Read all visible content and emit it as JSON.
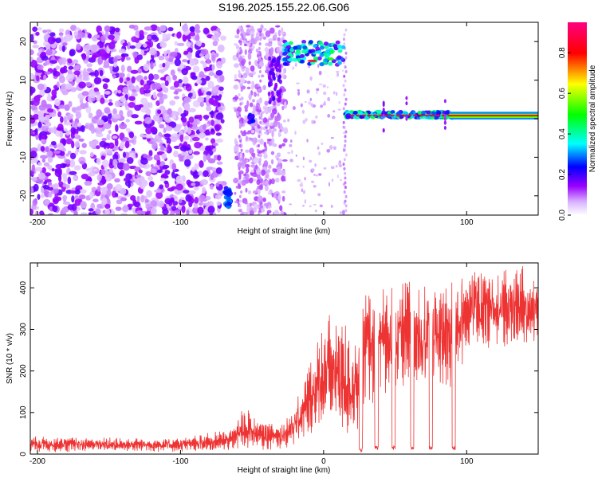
{
  "title": "S196.2025.155.22.06.G06",
  "chart_data": [
    {
      "type": "heatmap",
      "xlabel": "Height of straight line (km)",
      "ylabel": "Frequency (Hz)",
      "xlim": [
        -205,
        150
      ],
      "ylim": [
        -25,
        25
      ],
      "xticks": [
        -200,
        -100,
        0,
        100
      ],
      "yticks": [
        -20,
        -10,
        0,
        10,
        20
      ],
      "colorbar": {
        "label": "Normalized spectral amplitude",
        "range": [
          0,
          0.95
        ],
        "ticks": [
          0.0,
          0.2,
          0.4,
          0.6,
          0.8
        ],
        "colors": [
          "#ffffff",
          "#9900ff",
          "#0000ff",
          "#00ffff",
          "#00ff00",
          "#ffff00",
          "#ff0000",
          "#ff0080"
        ]
      },
      "regions": [
        {
          "x": [
            -205,
            -70
          ],
          "f": [
            -25,
            24
          ],
          "amplitude": [
            0.02,
            0.15
          ],
          "note_shown": ""
        },
        {
          "x": [
            -73,
            -65
          ],
          "f": [
            -24,
            -18
          ],
          "amplitude": [
            0.2,
            0.3
          ]
        },
        {
          "x": [
            -57,
            -48
          ],
          "f": [
            -2,
            2
          ],
          "amplitude": [
            0.2,
            0.25
          ]
        },
        {
          "x": [
            -25,
            15
          ],
          "f": [
            12,
            20
          ],
          "amplitude": [
            0.25,
            0.95
          ]
        },
        {
          "x": [
            15,
            150
          ],
          "f": [
            0,
            1.5
          ],
          "amplitude": [
            0.3,
            0.95
          ]
        }
      ]
    },
    {
      "type": "line",
      "xlabel": "Height of straight line (km)",
      "ylabel": "SNR (10 * v/v)",
      "xlim": [
        -205,
        150
      ],
      "ylim": [
        0,
        460
      ],
      "xticks": [
        -200,
        -100,
        0,
        100
      ],
      "yticks": [
        0,
        100,
        200,
        300,
        400
      ],
      "series_color": "#ee3333",
      "envelope": [
        {
          "x": -205,
          "low": 5,
          "high": 45
        },
        {
          "x": -150,
          "low": 5,
          "high": 40
        },
        {
          "x": -100,
          "low": 5,
          "high": 40
        },
        {
          "x": -65,
          "low": 5,
          "high": 60
        },
        {
          "x": -55,
          "low": 10,
          "high": 120
        },
        {
          "x": -45,
          "low": 10,
          "high": 80
        },
        {
          "x": -30,
          "low": 10,
          "high": 80
        },
        {
          "x": -20,
          "low": 20,
          "high": 120
        },
        {
          "x": -10,
          "low": 30,
          "high": 220
        },
        {
          "x": 0,
          "low": 60,
          "high": 320
        },
        {
          "x": 10,
          "low": 20,
          "high": 370
        },
        {
          "x": 20,
          "low": 20,
          "high": 300
        },
        {
          "x": 30,
          "low": 100,
          "high": 430
        },
        {
          "x": 45,
          "low": 150,
          "high": 420
        },
        {
          "x": 60,
          "low": 150,
          "high": 420
        },
        {
          "x": 75,
          "low": 150,
          "high": 420
        },
        {
          "x": 92,
          "low": 150,
          "high": 430
        },
        {
          "x": 100,
          "low": 250,
          "high": 460
        },
        {
          "x": 125,
          "low": 250,
          "high": 450
        },
        {
          "x": 150,
          "low": 250,
          "high": 460
        }
      ],
      "dropouts": [
        {
          "x": 26,
          "value": 5
        },
        {
          "x": 37,
          "value": 10
        },
        {
          "x": 49,
          "value": 10
        },
        {
          "x": 62,
          "value": 10
        },
        {
          "x": 75,
          "value": 10
        },
        {
          "x": 91,
          "value": 10
        }
      ]
    }
  ]
}
